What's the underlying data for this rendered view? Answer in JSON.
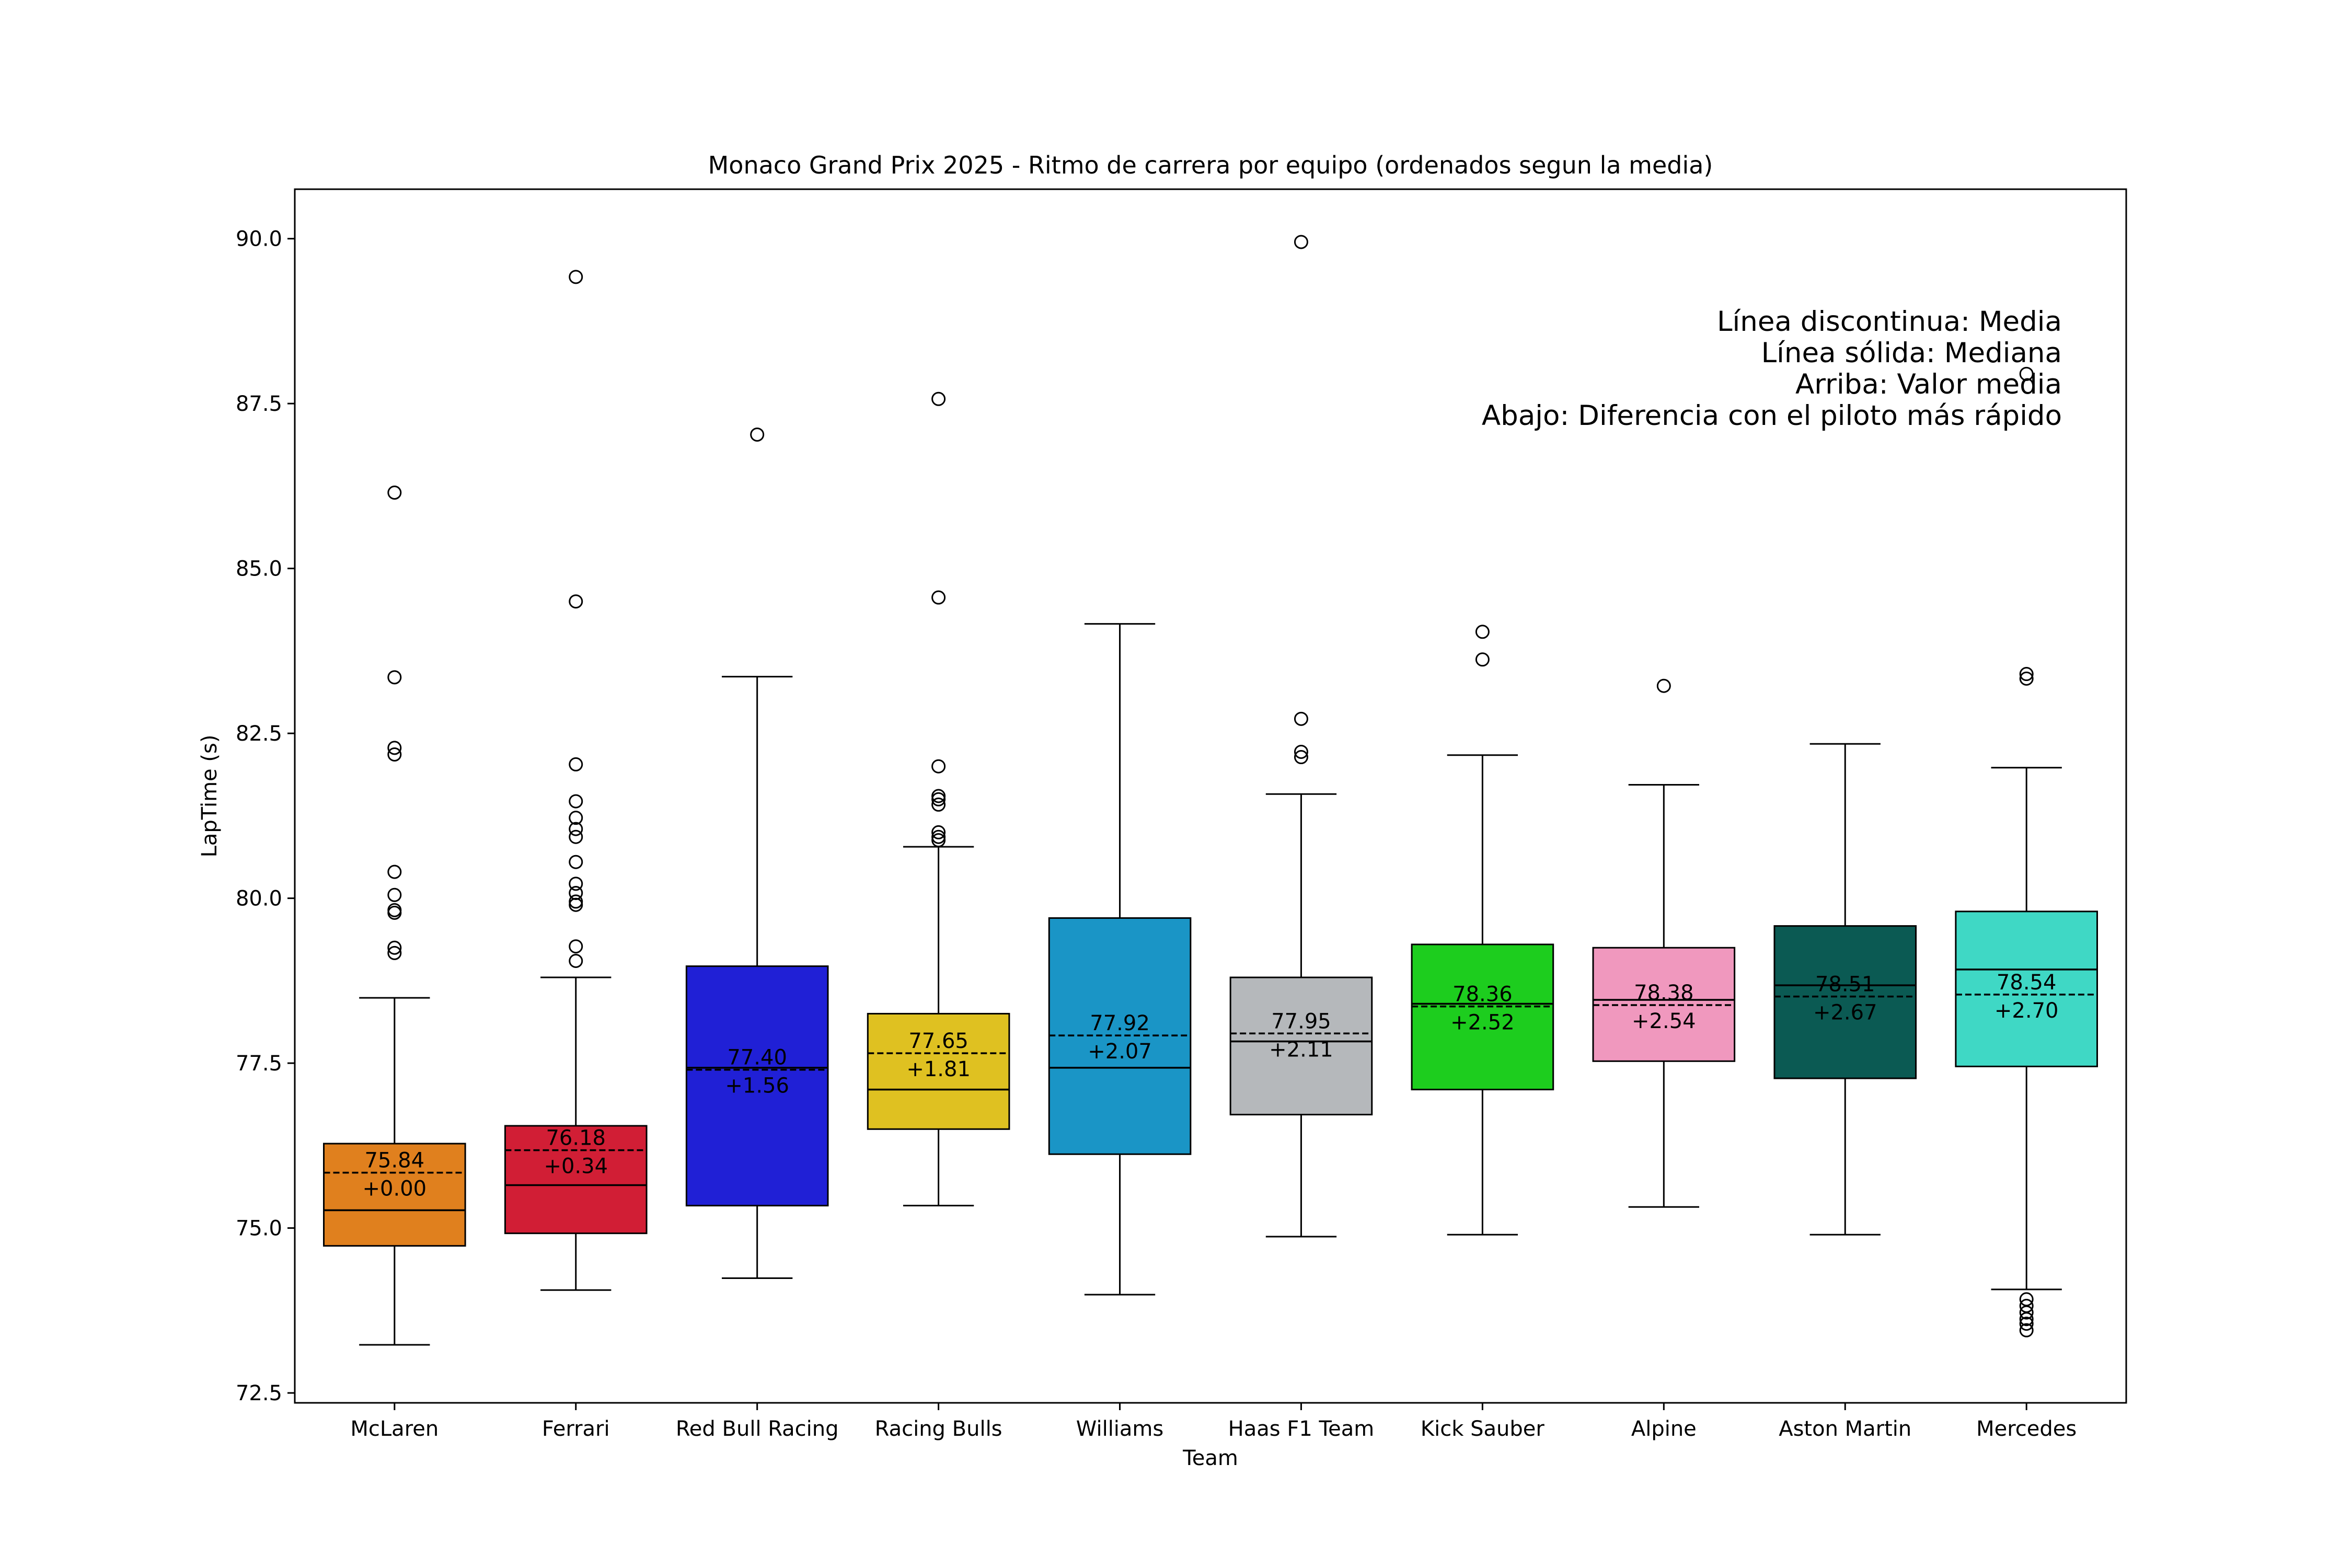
{
  "chart_data": {
    "type": "box",
    "title": "Monaco Grand Prix 2025 - Ritmo de carrera por equipo (ordenados segun la media)",
    "xlabel": "Team",
    "ylabel": "LapTime (s)",
    "ylim": [
      72.35,
      90.75
    ],
    "yticks": [
      "72.5",
      "75.0",
      "77.5",
      "80.0",
      "82.5",
      "85.0",
      "87.5",
      "90.0"
    ],
    "legend_placement": "top-right",
    "legend": [
      "Línea discontinua: Media",
      "Línea sólida: Mediana",
      "Arriba: Valor media",
      "Abajo: Diferencia con el piloto más rápido"
    ],
    "grid": false,
    "teams": [
      {
        "name": "McLaren",
        "color": "#E0801E",
        "q1": 74.73,
        "median": 75.27,
        "q3": 76.28,
        "whisker_low": 73.23,
        "whisker_high": 78.49,
        "mean": 75.84,
        "mean_label": "75.84",
        "delta_label": "+0.00",
        "outliers": [
          86.15,
          83.35,
          82.28,
          82.18,
          80.4,
          80.05,
          79.82,
          79.78,
          79.25,
          79.17
        ]
      },
      {
        "name": "Ferrari",
        "color": "#D11E35",
        "q1": 74.92,
        "median": 75.65,
        "q3": 76.55,
        "whisker_low": 74.06,
        "whisker_high": 78.8,
        "mean": 76.18,
        "mean_label": "76.18",
        "delta_label": "+0.34",
        "outliers": [
          89.42,
          84.5,
          82.03,
          81.47,
          81.22,
          81.05,
          80.93,
          80.55,
          80.22,
          80.08,
          79.95,
          79.9,
          79.27,
          79.05
        ]
      },
      {
        "name": "Red Bull Racing",
        "color": "#2020D6",
        "q1": 75.34,
        "median": 77.43,
        "q3": 78.97,
        "whisker_low": 74.24,
        "whisker_high": 83.36,
        "mean": 77.4,
        "mean_label": "77.40",
        "delta_label": "+1.56",
        "outliers": [
          87.03
        ]
      },
      {
        "name": "Racing Bulls",
        "color": "#DFC121",
        "q1": 76.5,
        "median": 77.1,
        "q3": 78.25,
        "whisker_low": 75.34,
        "whisker_high": 80.78,
        "mean": 77.65,
        "mean_label": "77.65",
        "delta_label": "+1.81",
        "outliers": [
          87.57,
          84.56,
          82.0,
          81.55,
          81.5,
          81.42,
          81.0,
          80.93,
          80.88
        ]
      },
      {
        "name": "Williams",
        "color": "#1A95C6",
        "q1": 76.12,
        "median": 77.43,
        "q3": 79.7,
        "whisker_low": 73.99,
        "whisker_high": 84.16,
        "mean": 77.92,
        "mean_label": "77.92",
        "delta_label": "+2.07",
        "outliers": []
      },
      {
        "name": "Haas F1 Team",
        "color": "#B5B8BB",
        "q1": 76.72,
        "median": 77.83,
        "q3": 78.8,
        "whisker_low": 74.87,
        "whisker_high": 81.58,
        "mean": 77.95,
        "mean_label": "77.95",
        "delta_label": "+2.11",
        "outliers": [
          89.95,
          82.72,
          82.22,
          82.14
        ]
      },
      {
        "name": "Kick Sauber",
        "color": "#1DCD1E",
        "q1": 77.1,
        "median": 78.4,
        "q3": 79.3,
        "whisker_low": 74.9,
        "whisker_high": 82.17,
        "mean": 78.36,
        "mean_label": "78.36",
        "delta_label": "+2.52",
        "outliers": [
          84.04,
          83.62
        ]
      },
      {
        "name": "Alpine",
        "color": "#F098BE",
        "q1": 77.53,
        "median": 78.46,
        "q3": 79.25,
        "whisker_low": 75.32,
        "whisker_high": 81.72,
        "mean": 78.38,
        "mean_label": "78.38",
        "delta_label": "+2.54",
        "outliers": [
          83.22
        ]
      },
      {
        "name": "Aston Martin",
        "color": "#0B5A53",
        "q1": 77.27,
        "median": 78.68,
        "q3": 79.58,
        "whisker_low": 74.9,
        "whisker_high": 82.34,
        "mean": 78.51,
        "mean_label": "78.51",
        "delta_label": "+2.67",
        "outliers": []
      },
      {
        "name": "Mercedes",
        "color": "#3FD8C5",
        "q1": 77.45,
        "median": 78.92,
        "q3": 79.8,
        "whisker_low": 74.07,
        "whisker_high": 81.98,
        "mean": 78.54,
        "mean_label": "78.54",
        "delta_label": "+2.70",
        "outliers": [
          87.95,
          83.4,
          83.33,
          73.92,
          73.82,
          73.72,
          73.62,
          73.55,
          73.45
        ]
      }
    ]
  }
}
